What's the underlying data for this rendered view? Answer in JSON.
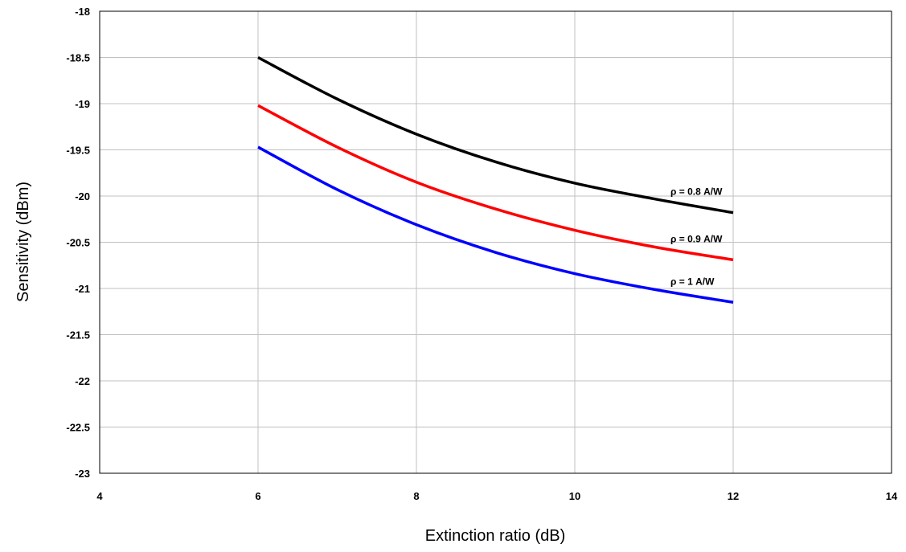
{
  "chart_data": {
    "type": "line",
    "title": "",
    "xlabel": "Extinction ratio (dB)",
    "ylabel": "Sensitivity (dBm)",
    "xlim": [
      4,
      14
    ],
    "ylim": [
      -23,
      -18
    ],
    "xticks": [
      4,
      6,
      8,
      10,
      12,
      14
    ],
    "yticks": [
      -18,
      -18.5,
      -19,
      -19.5,
      -20,
      -20.5,
      -21,
      -21.5,
      -22,
      -22.5,
      -23
    ],
    "xtick_labels": [
      "4",
      "6",
      "8",
      "10",
      "12",
      "14"
    ],
    "ytick_labels": [
      "-18",
      "-18.5",
      "-19",
      "-19.5",
      "-20",
      "-20.5",
      "-21",
      "-21.5",
      "-22",
      "-22.5",
      "-23"
    ],
    "grid": true,
    "legend": "none",
    "series": [
      {
        "name": "ρ = 0.8 A/W",
        "color": "#000000",
        "x": [
          6,
          7,
          8,
          9,
          10,
          11,
          12
        ],
        "y": [
          -18.5,
          -18.95,
          -19.33,
          -19.63,
          -19.86,
          -20.03,
          -20.18
        ]
      },
      {
        "name": "ρ = 0.9 A/W",
        "color": "#ff0000",
        "x": [
          6,
          7,
          8,
          9,
          10,
          11,
          12
        ],
        "y": [
          -19.02,
          -19.47,
          -19.85,
          -20.14,
          -20.37,
          -20.55,
          -20.69
        ]
      },
      {
        "name": "ρ = 1 A/W",
        "color": "#0000ff",
        "x": [
          6,
          7,
          8,
          9,
          10,
          11,
          12
        ],
        "y": [
          -19.47,
          -19.93,
          -20.31,
          -20.61,
          -20.84,
          -21.01,
          -21.15
        ]
      }
    ]
  }
}
